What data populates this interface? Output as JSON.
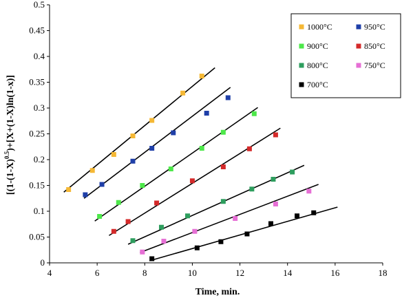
{
  "chart_data": {
    "type": "scatter",
    "title": "",
    "xlabel": "Time, min.",
    "ylabel": {
      "part1": "[(1-(1-X)",
      "superscript": "0.5",
      "part2": ")+[X+(1-X)ln(1-x)]"
    },
    "xlim": [
      4,
      18
    ],
    "ylim": [
      0,
      0.5
    ],
    "x_ticks": [
      "4",
      "6",
      "8",
      "10",
      "12",
      "14",
      "16",
      "18"
    ],
    "y_ticks": [
      "0",
      "0.05",
      "0.1",
      "0.15",
      "0.2",
      "0.25",
      "0.3",
      "0.35",
      "0.4",
      "0.45",
      "0.5"
    ],
    "legend_position": "top-right",
    "series": [
      {
        "name": "1000°C",
        "color": "#F5B835",
        "x": [
          4.8,
          5.8,
          6.7,
          7.5,
          8.3,
          9.6,
          10.4
        ],
        "y": [
          0.142,
          0.179,
          0.21,
          0.246,
          0.276,
          0.329,
          0.362
        ],
        "fit": [
          [
            4.6,
            0.137
          ],
          [
            10.95,
            0.378
          ]
        ]
      },
      {
        "name": "950°C",
        "color": "#1F3FA8",
        "x": [
          5.5,
          6.2,
          7.5,
          8.3,
          9.2,
          10.6,
          11.5
        ],
        "y": [
          0.132,
          0.152,
          0.197,
          0.222,
          0.252,
          0.29,
          0.32
        ],
        "fit": [
          [
            5.45,
            0.125
          ],
          [
            11.6,
            0.34
          ]
        ]
      },
      {
        "name": "900°C",
        "color": "#4DE84A",
        "x": [
          6.1,
          6.9,
          7.9,
          9.1,
          10.4,
          11.3,
          12.6
        ],
        "y": [
          0.09,
          0.117,
          0.15,
          0.182,
          0.222,
          0.253,
          0.289
        ],
        "fit": [
          [
            5.9,
            0.081
          ],
          [
            12.75,
            0.301
          ]
        ]
      },
      {
        "name": "850°C",
        "color": "#D42A2A",
        "x": [
          6.7,
          7.3,
          8.5,
          10.0,
          11.3,
          12.4,
          13.5
        ],
        "y": [
          0.061,
          0.08,
          0.116,
          0.159,
          0.186,
          0.221,
          0.248
        ],
        "fit": [
          [
            6.5,
            0.053
          ],
          [
            13.7,
            0.261
          ]
        ]
      },
      {
        "name": "800°C",
        "color": "#2E9E5E",
        "x": [
          7.5,
          8.7,
          9.8,
          11.3,
          12.5,
          13.4,
          14.2
        ],
        "y": [
          0.043,
          0.069,
          0.091,
          0.119,
          0.143,
          0.162,
          0.176
        ],
        "fit": [
          [
            7.3,
            0.036
          ],
          [
            14.7,
            0.189
          ]
        ]
      },
      {
        "name": "750°C",
        "color": "#E66FD5",
        "x": [
          7.9,
          8.8,
          10.1,
          11.8,
          13.5,
          14.9
        ],
        "y": [
          0.021,
          0.042,
          0.061,
          0.086,
          0.114,
          0.139
        ],
        "fit": [
          [
            7.8,
            0.02
          ],
          [
            15.3,
            0.152
          ]
        ]
      },
      {
        "name": "700°C",
        "color": "#000000",
        "x": [
          8.3,
          10.2,
          11.2,
          12.3,
          13.3,
          14.4,
          15.1
        ],
        "y": [
          0.008,
          0.029,
          0.041,
          0.056,
          0.076,
          0.091,
          0.097
        ],
        "fit": [
          [
            8.2,
            0.004
          ],
          [
            16.1,
            0.108
          ]
        ]
      }
    ]
  }
}
